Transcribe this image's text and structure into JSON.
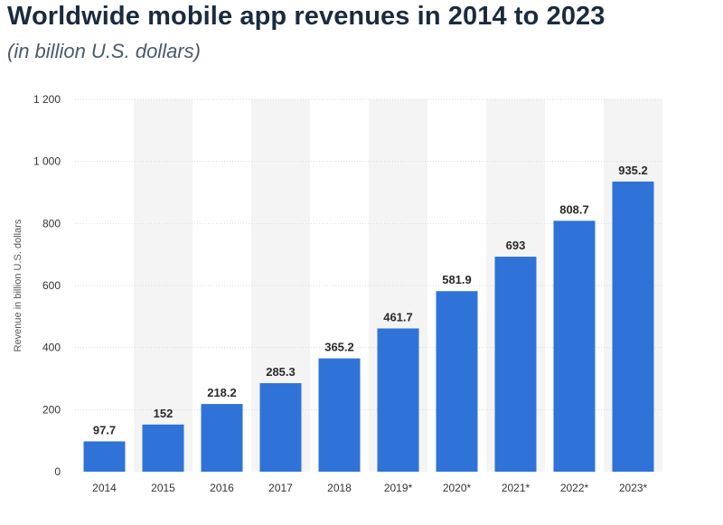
{
  "title": "Worldwide mobile app revenues in 2014 to 2023",
  "subtitle": "(in billion U.S. dollars)",
  "colors": {
    "bar": "#2f72d8",
    "band": "#f4f4f4",
    "grid": "#d9d9d9"
  },
  "chart_data": {
    "type": "bar",
    "categories": [
      "2014",
      "2015",
      "2016",
      "2017",
      "2018",
      "2019*",
      "2020*",
      "2021*",
      "2022*",
      "2023*"
    ],
    "values": [
      97.7,
      152,
      218.2,
      285.3,
      365.2,
      461.7,
      581.9,
      693,
      808.7,
      935.2
    ],
    "value_labels": [
      "97.7",
      "152",
      "218.2",
      "285.3",
      "365.2",
      "461.7",
      "581.9",
      "693",
      "808.7",
      "935.2"
    ],
    "ylabel": "Revenue in billion U.S. dollars",
    "xlabel": "",
    "ylim": [
      0,
      1200
    ],
    "yticks": [
      0,
      200,
      400,
      600,
      800,
      1000,
      1200
    ],
    "ytick_labels": [
      "0",
      "200",
      "400",
      "600",
      "800",
      "1 000",
      "1 200"
    ],
    "grid": true,
    "legend": false
  }
}
